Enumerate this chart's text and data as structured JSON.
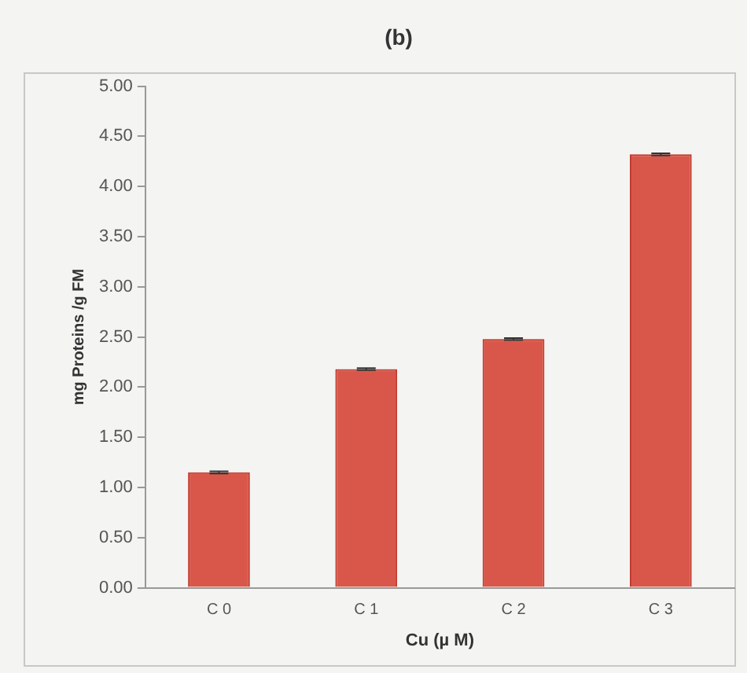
{
  "chart_data": {
    "type": "bar",
    "title": "(b)",
    "xlabel": "Cu (µ M)",
    "ylabel": "mg Proteins /g FM",
    "categories": [
      "C 0",
      "C 1",
      "C 2",
      "C 3"
    ],
    "values": [
      1.15,
      2.18,
      2.48,
      4.32
    ],
    "errors": [
      0.01,
      0.01,
      0.01,
      0.01
    ],
    "color": "#d9574a",
    "ylim": [
      0,
      5
    ],
    "yticks": [
      {
        "value": 0,
        "label": "0.00"
      },
      {
        "value": 0.5,
        "label": "0.50"
      },
      {
        "value": 1,
        "label": "1.00"
      },
      {
        "value": 1.5,
        "label": "1.50"
      },
      {
        "value": 2,
        "label": "2.00"
      },
      {
        "value": 2.5,
        "label": "2.50"
      },
      {
        "value": 3,
        "label": "3.00"
      },
      {
        "value": 3.5,
        "label": "3.50"
      },
      {
        "value": 4,
        "label": "4.00"
      },
      {
        "value": 4.5,
        "label": "4.50"
      },
      {
        "value": 5,
        "label": "5.00"
      }
    ],
    "grid": false,
    "legend": false
  }
}
